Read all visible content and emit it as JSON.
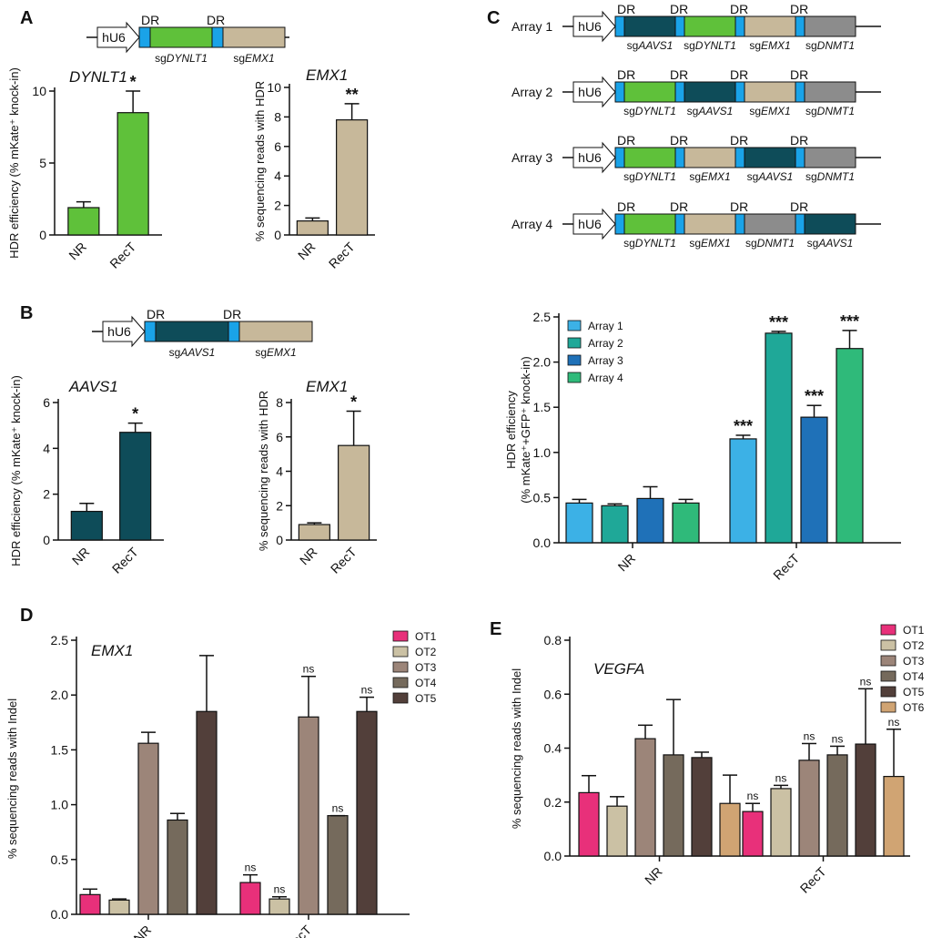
{
  "colors": {
    "dr": "#1aa3e8",
    "dynlt1": "#5fc13a",
    "emx1": "#c7b89a",
    "aavs1": "#0e4c59",
    "dnmt1": "#8c8c8c",
    "nr_bar": "#2eaad6",
    "series_c": [
      "#3cb1e6",
      "#1fa898",
      "#1f71b8",
      "#2fba7a"
    ],
    "series_d": [
      "#e8307a",
      "#cbc1a4",
      "#9c8579",
      "#756a5c",
      "#523f3a"
    ],
    "series_e": [
      "#e8307a",
      "#cbc1a4",
      "#9c8579",
      "#756a5c",
      "#523f3a",
      "#d0a473"
    ]
  },
  "labels": {
    "panels": [
      "A",
      "B",
      "C",
      "D",
      "E"
    ],
    "promoter": "hU6",
    "dr": "DR",
    "sg_prefix": "sg",
    "arrays": [
      "Array 1",
      "Array 2",
      "Array 3",
      "Array 4"
    ],
    "sig_star1": "*",
    "sig_star2": "**",
    "sig_star3": "***",
    "sig_ns": "ns"
  },
  "diagrams": {
    "A": [
      "DYNLT1",
      "EMX1"
    ],
    "B": [
      "AAVS1",
      "EMX1"
    ],
    "C": [
      [
        "AAVS1",
        "DYNLT1",
        "EMX1",
        "DNMT1"
      ],
      [
        "DYNLT1",
        "AAVS1",
        "EMX1",
        "DNMT1"
      ],
      [
        "DYNLT1",
        "EMX1",
        "AAVS1",
        "DNMT1"
      ],
      [
        "DYNLT1",
        "EMX1",
        "DNMT1",
        "AAVS1"
      ]
    ]
  },
  "chart_data": [
    {
      "id": "A-left",
      "type": "bar",
      "title": "DYNLT1",
      "ylabel": "HDR efficiency (% mKate⁺ knock-in)",
      "categories": [
        "NR",
        "RecT"
      ],
      "values": [
        1.9,
        8.5
      ],
      "errors": [
        0.4,
        1.5
      ],
      "ylim": [
        0,
        12
      ],
      "yticks": [
        "0",
        "5",
        "10"
      ],
      "significance": [
        "",
        "*"
      ]
    },
    {
      "id": "A-right",
      "type": "bar",
      "title": "EMX1",
      "ylabel": "% sequencing reads with HDR",
      "categories": [
        "NR",
        "RecT"
      ],
      "values": [
        0.95,
        7.8
      ],
      "errors": [
        0.2,
        1.1
      ],
      "ylim": [
        0,
        10
      ],
      "yticks": [
        "0",
        "2",
        "4",
        "6",
        "8",
        "10"
      ],
      "significance": [
        "",
        "**"
      ]
    },
    {
      "id": "B-left",
      "type": "bar",
      "title": "AAVS1",
      "ylabel": "HDR efficiency (% mKate⁺ knock-in)",
      "categories": [
        "NR",
        "RecT"
      ],
      "values": [
        1.25,
        4.7
      ],
      "errors": [
        0.35,
        0.4
      ],
      "ylim": [
        0,
        6
      ],
      "yticks": [
        "0",
        "2",
        "4",
        "6"
      ],
      "significance": [
        "",
        "*"
      ]
    },
    {
      "id": "B-right",
      "type": "bar",
      "title": "EMX1",
      "ylabel": "% sequencing reads with HDR",
      "categories": [
        "NR",
        "RecT"
      ],
      "values": [
        0.9,
        5.5
      ],
      "errors": [
        0.1,
        2.0
      ],
      "ylim": [
        0,
        8
      ],
      "yticks": [
        "0",
        "2",
        "4",
        "6",
        "8"
      ],
      "significance": [
        "",
        "*"
      ]
    },
    {
      "id": "C",
      "type": "bar",
      "ylabel": "HDR efficiency",
      "ylabel2": "(% mKate⁺+GFP⁺ knock-in)",
      "categories": [
        "NR",
        "RecT"
      ],
      "series": [
        {
          "name": "Array 1",
          "values": [
            0.44,
            1.15
          ],
          "errors": [
            0.04,
            0.04
          ]
        },
        {
          "name": "Array 2",
          "values": [
            0.41,
            2.32
          ],
          "errors": [
            0.02,
            0.02
          ]
        },
        {
          "name": "Array 3",
          "values": [
            0.49,
            1.39
          ],
          "errors": [
            0.13,
            0.13
          ]
        },
        {
          "name": "Array 4",
          "values": [
            0.44,
            2.15
          ],
          "errors": [
            0.04,
            0.2
          ]
        }
      ],
      "ylim": [
        0,
        2.5
      ],
      "yticks": [
        "0.0",
        "0.5",
        "1.0",
        "1.5",
        "2.0",
        "2.5"
      ],
      "significance": [
        [
          "",
          "",
          "",
          ""
        ],
        [
          "***",
          "***",
          "***",
          "***"
        ]
      ]
    },
    {
      "id": "D",
      "type": "bar",
      "title": "EMX1",
      "ylabel": "% sequencing reads with Indel",
      "categories": [
        "NR",
        "RecT"
      ],
      "series": [
        {
          "name": "OT1",
          "values": [
            0.18,
            0.29
          ],
          "errors": [
            0.05,
            0.07
          ]
        },
        {
          "name": "OT2",
          "values": [
            0.13,
            0.14
          ],
          "errors": [
            0.01,
            0.02
          ]
        },
        {
          "name": "OT3",
          "values": [
            1.56,
            1.8
          ],
          "errors": [
            0.1,
            0.37
          ]
        },
        {
          "name": "OT4",
          "values": [
            0.86,
            0.9
          ],
          "errors": [
            0.06,
            0.0
          ]
        },
        {
          "name": "OT5",
          "values": [
            1.85,
            1.85
          ],
          "errors": [
            0.51,
            0.13
          ]
        }
      ],
      "ylim": [
        0,
        2.5
      ],
      "yticks": [
        "0.0",
        "0.5",
        "1.0",
        "1.5",
        "2.0",
        "2.5"
      ],
      "significance": [
        [
          "",
          "",
          "",
          "",
          ""
        ],
        [
          "ns",
          "ns",
          "ns",
          "ns",
          "ns"
        ]
      ]
    },
    {
      "id": "E",
      "type": "bar",
      "title": "VEGFA",
      "ylabel": "% sequencing reads with Indel",
      "categories": [
        "NR",
        "RecT"
      ],
      "series": [
        {
          "name": "OT1",
          "values": [
            0.235,
            0.165
          ],
          "errors": [
            0.063,
            0.03
          ]
        },
        {
          "name": "OT2",
          "values": [
            0.185,
            0.25
          ],
          "errors": [
            0.035,
            0.012
          ]
        },
        {
          "name": "OT3",
          "values": [
            0.435,
            0.355
          ],
          "errors": [
            0.05,
            0.062
          ]
        },
        {
          "name": "OT4",
          "values": [
            0.375,
            0.375
          ],
          "errors": [
            0.205,
            0.032
          ]
        },
        {
          "name": "OT5",
          "values": [
            0.365,
            0.415
          ],
          "errors": [
            0.02,
            0.205
          ]
        },
        {
          "name": "OT6",
          "values": [
            0.195,
            0.295
          ],
          "errors": [
            0.105,
            0.175
          ]
        }
      ],
      "ylim": [
        0,
        0.8
      ],
      "yticks": [
        "0.0",
        "0.2",
        "0.4",
        "0.6",
        "0.8"
      ],
      "significance": [
        [
          "",
          "",
          "",
          "",
          "",
          ""
        ],
        [
          "ns",
          "ns",
          "ns",
          "ns",
          "ns",
          "ns"
        ]
      ]
    }
  ]
}
